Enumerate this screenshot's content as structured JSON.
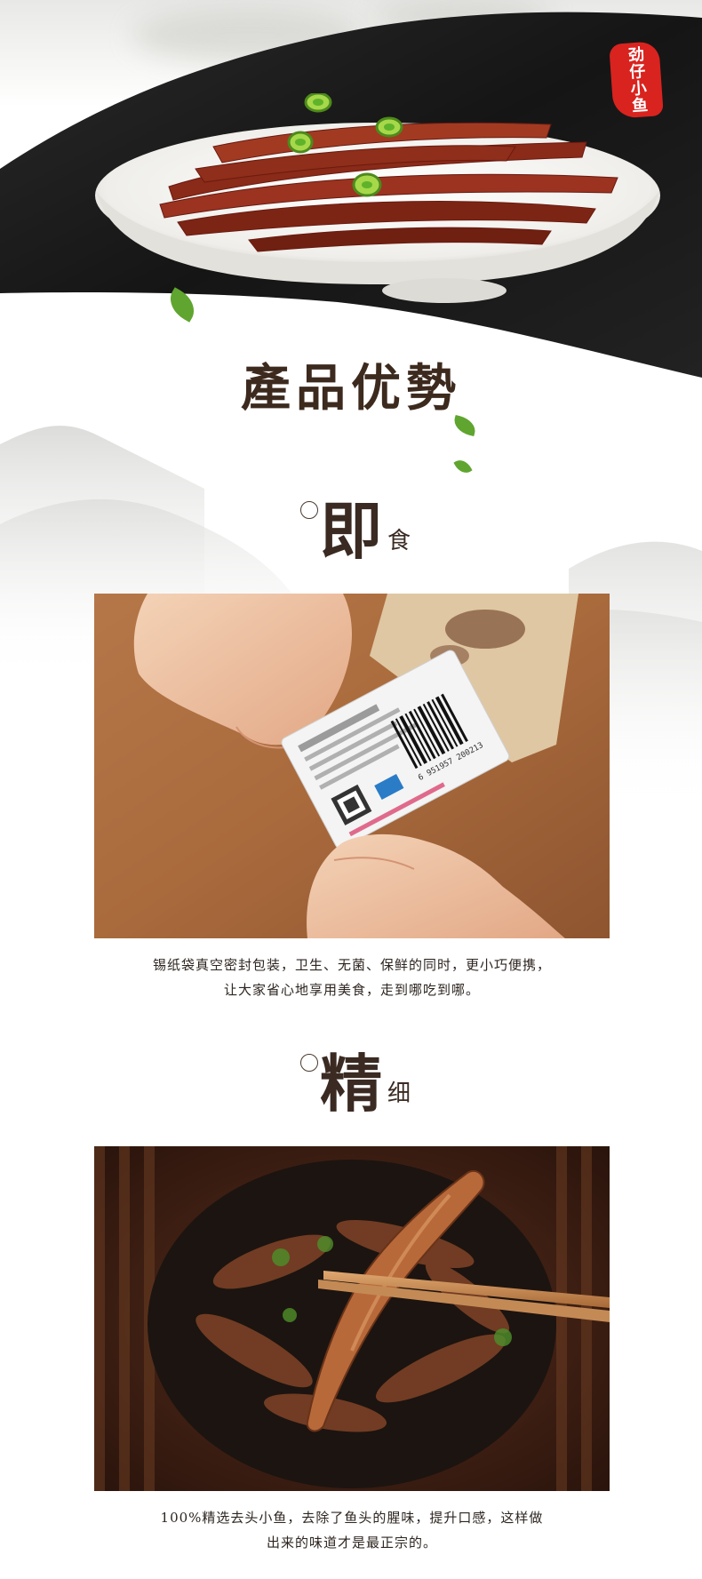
{
  "seal": {
    "text": "劲仔小鱼"
  },
  "main_title": "產品优勢",
  "features": [
    {
      "heading_big": "即",
      "heading_small": "食",
      "description_line1": "锡纸袋真空密封包装，卫生、无菌、保鲜的同时，更小巧便携，",
      "description_line2": "让大家省心地享用美食，走到哪吃到哪。"
    },
    {
      "heading_big": "精",
      "heading_small": "细",
      "description_line1": "100%精选去头小鱼，去除了鱼头的腥味，提升口感，这样做",
      "description_line2": "出来的味道才是最正宗的。"
    }
  ],
  "package_label": {
    "barcode_digits": "6 951957 200213"
  },
  "colors": {
    "seal": "#d9231f",
    "title": "#3d2a1e",
    "leaf": "#5fa52f",
    "dark_bg": "#1d1d1d"
  }
}
